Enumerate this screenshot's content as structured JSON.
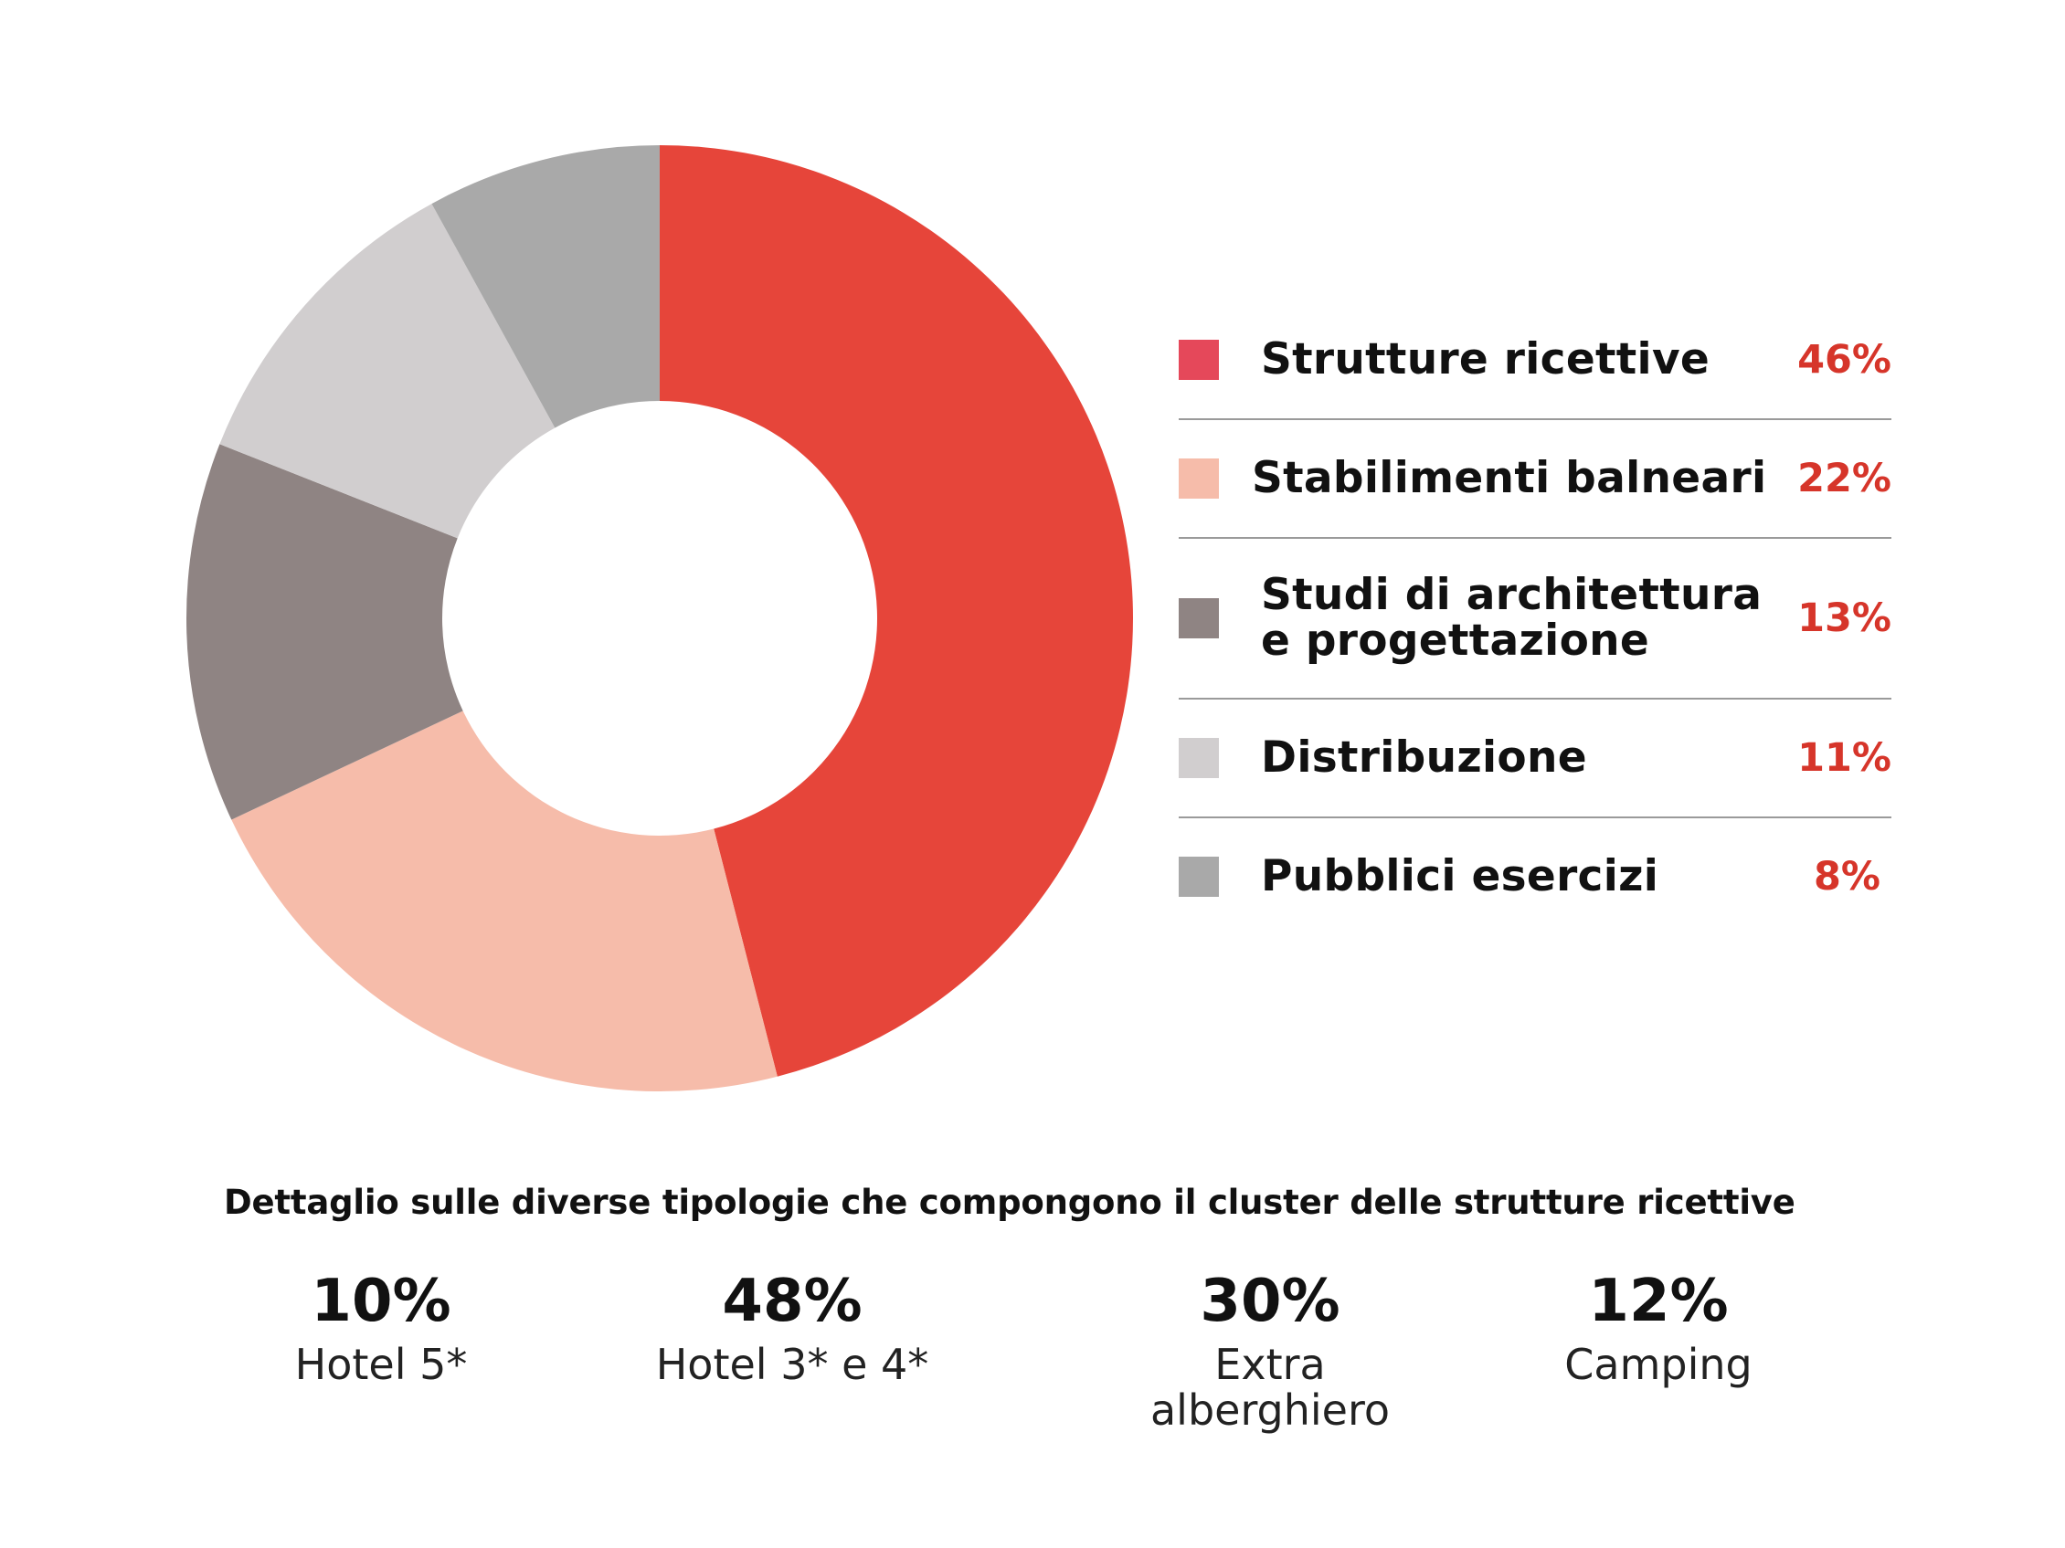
{
  "chart_data": {
    "type": "pie",
    "donut": true,
    "categories": [
      "Strutture ricettive",
      "Stabilimenti balneari",
      "Studi di architettura e progettazione",
      "Distribuzione",
      "Pubblici esercizi"
    ],
    "values": [
      46,
      22,
      13,
      11,
      8
    ],
    "value_labels": [
      "46%",
      "22%",
      "13%",
      "11%",
      "8%"
    ],
    "colors": [
      "#e6453a",
      "#f6bcaa",
      "#8f8483",
      "#d1cecf",
      "#a9a9a9"
    ],
    "legend_colors": [
      "#e5485a",
      "#f6bcaa",
      "#8f8483",
      "#d1cecf",
      "#a9a9a9"
    ],
    "legend": "right"
  },
  "legend": {
    "items": [
      {
        "label": "Strutture ricettive",
        "value": "46%"
      },
      {
        "label": "Stabilimenti balneari",
        "value": "22%"
      },
      {
        "label": "Studi di architettura e progettazione",
        "value": "13%"
      },
      {
        "label": "Distribuzione",
        "value": "11%"
      },
      {
        "label": "Pubblici esercizi",
        "value": "8%"
      }
    ]
  },
  "detail": {
    "title": "Dettaglio sulle diverse tipologie che compongono il cluster delle strutture ricettive",
    "items": [
      {
        "value": "10%",
        "label": "Hotel 5*"
      },
      {
        "value": "48%",
        "label": "Hotel 3* e 4*"
      },
      {
        "value": "30%",
        "label": "Extra alberghiero"
      },
      {
        "value": "12%",
        "label": "Camping"
      }
    ]
  }
}
